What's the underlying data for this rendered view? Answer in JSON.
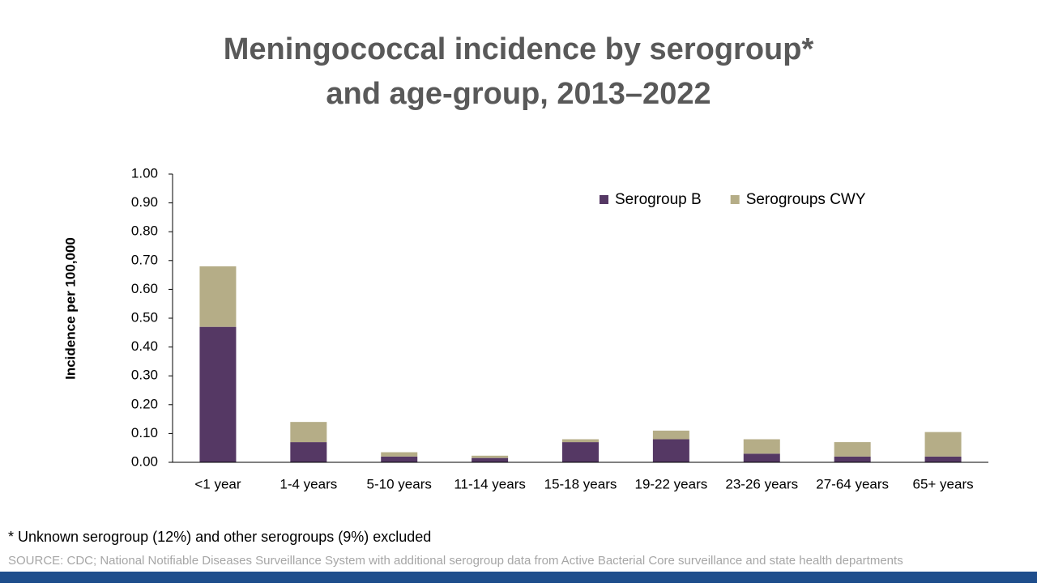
{
  "chart_data": {
    "type": "stacked-bar",
    "title": "Meningococcal incidence by serogroup*",
    "subtitle": "and age-group, 2013–2022",
    "y_label": "Incidence per 100,000",
    "categories": [
      "<1 year",
      "1-4 years",
      "5-10 years",
      "11-14 years",
      "15-18 years",
      "19-22 years",
      "23-26 years",
      "27-64 years",
      "65+ years"
    ],
    "series": [
      {
        "name": "Serogroup B",
        "color": "#553864",
        "values": [
          0.47,
          0.07,
          0.02,
          0.015,
          0.07,
          0.08,
          0.03,
          0.02,
          0.02
        ]
      },
      {
        "name": "Serogroups CWY",
        "color": "#b5ad87",
        "values": [
          0.21,
          0.07,
          0.015,
          0.008,
          0.01,
          0.03,
          0.05,
          0.05,
          0.085
        ]
      }
    ],
    "ylim": [
      0,
      1
    ],
    "yticks": [
      {
        "value": 0,
        "label": "0.00"
      },
      {
        "value": 0.1,
        "label": "0.10"
      },
      {
        "value": 0.2,
        "label": "0.20"
      },
      {
        "value": 0.3,
        "label": "0.30"
      },
      {
        "value": 0.4,
        "label": "0.40"
      },
      {
        "value": 0.5,
        "label": "0.50"
      },
      {
        "value": 0.6,
        "label": "0.60"
      },
      {
        "value": 0.7,
        "label": "0.70"
      },
      {
        "value": 0.8,
        "label": "0.80"
      },
      {
        "value": 0.9,
        "label": "0.90"
      },
      {
        "value": 1,
        "label": "1.00"
      }
    ],
    "legend": "top-right",
    "footnote": "* Unknown serogroup (12%) and other serogroups (9%) excluded",
    "source": "SOURCE: CDC; National Notifiable Diseases Surveillance System with additional serogroup data from Active Bacterial Core surveillance and state health departments"
  }
}
